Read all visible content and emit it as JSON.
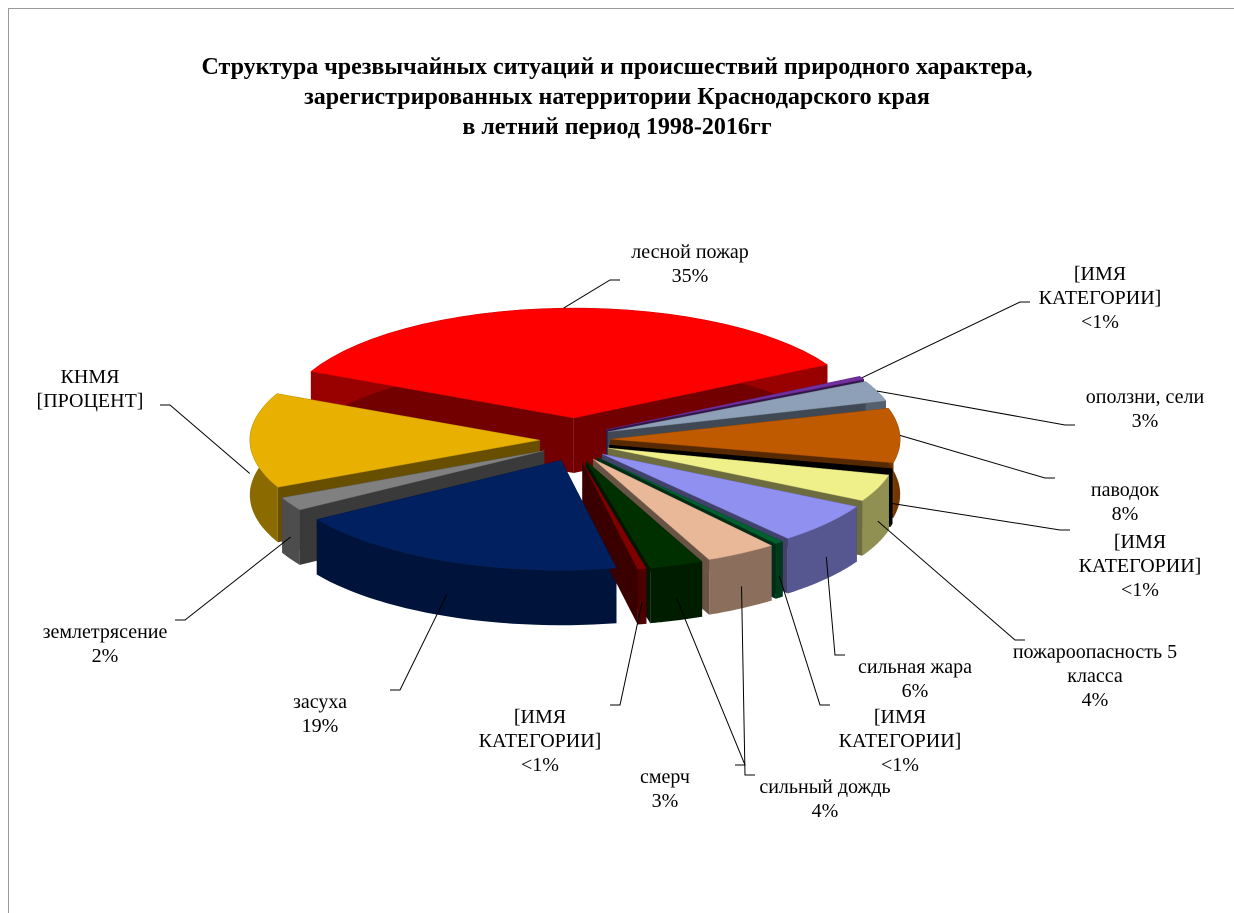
{
  "chart_data": {
    "type": "pie3d",
    "title": "Структура чрезвычайных ситуаций и происшествий природного характера,\nзарегистрированных натерритории Краснодарского края\nв летний период  1998-2016гг",
    "categories": [
      "лесной пожар",
      "[ИМЯ КАТЕГОРИИ]",
      "оползни, сели",
      "паводок",
      "[ИМЯ КАТЕГОРИИ]",
      "пожароопасность 5 класса",
      "сильная жара",
      "[ИМЯ КАТЕГОРИИ]",
      "сильный дождь",
      "смерч",
      "[ИМЯ КАТЕГОРИИ]",
      "засуха",
      "землетрясение",
      "КНМЯ"
    ],
    "values": [
      35,
      0.5,
      3,
      8,
      0.5,
      4,
      6,
      0.5,
      4,
      3,
      0.5,
      19,
      2,
      14
    ],
    "value_labels": [
      "35%",
      "<1%",
      "3%",
      "8%",
      "<1%",
      "4%",
      "6%",
      "<1%",
      "4%",
      "3%",
      "<1%",
      "19%",
      "2%",
      "[ПРОЦЕНТ]"
    ],
    "colors": [
      "#ff0000",
      "#7030a0",
      "#8ea0b8",
      "#c05a00",
      "#000000",
      "#f0f08a",
      "#9090f0",
      "#006030",
      "#e8b898",
      "#003000",
      "#800000",
      "#002060",
      "#808080",
      "#e8b000"
    ]
  }
}
